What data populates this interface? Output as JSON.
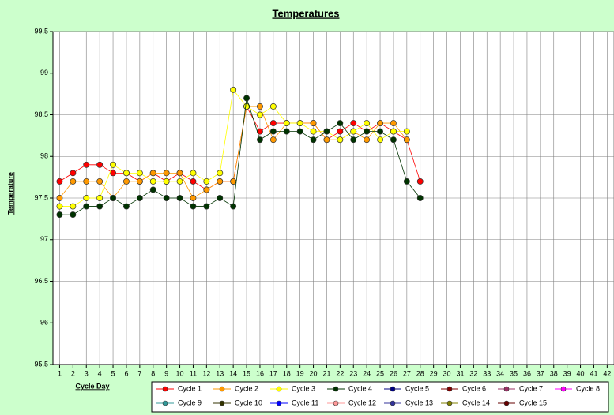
{
  "chart_data": {
    "type": "line",
    "title": "Temperatures",
    "x_label": "Cycle Day",
    "y_label": "Temperature",
    "categories": [
      1,
      2,
      3,
      4,
      5,
      6,
      7,
      8,
      9,
      10,
      11,
      12,
      13,
      14,
      15,
      16,
      17,
      18,
      19,
      20,
      21,
      22,
      23,
      24,
      25,
      26,
      27,
      28,
      29,
      30,
      31,
      32,
      33,
      34,
      35,
      36,
      37,
      38,
      39,
      40,
      41,
      42
    ],
    "ylim": [
      95.5,
      99.5
    ],
    "yticks": [
      95.5,
      96,
      96.5,
      97,
      97.5,
      98,
      98.5,
      99,
      99.5
    ],
    "grid": true,
    "legend": "bottom",
    "series": [
      {
        "name": "Cycle 1",
        "color": "#ff0000",
        "values": [
          97.7,
          97.8,
          97.9,
          97.9,
          97.8,
          97.8,
          97.7,
          97.8,
          97.7,
          97.8,
          97.7,
          97.6,
          97.7,
          97.7,
          98.6,
          98.3,
          98.4,
          98.4,
          98.4,
          98.4,
          98.2,
          98.3,
          98.4,
          98.3,
          98.4,
          98.3,
          98.2,
          97.7,
          null,
          null,
          null,
          null,
          null,
          null,
          null,
          null,
          null,
          null,
          null,
          null,
          null,
          null
        ]
      },
      {
        "name": "Cycle 2",
        "color": "#ff9900",
        "values": [
          97.5,
          97.7,
          97.7,
          97.7,
          97.5,
          97.7,
          97.7,
          97.8,
          97.8,
          97.8,
          97.5,
          97.6,
          97.7,
          97.7,
          98.6,
          98.6,
          98.2,
          98.4,
          98.4,
          98.4,
          98.2,
          98.2,
          98.3,
          98.2,
          98.4,
          98.4,
          98.2,
          null,
          null,
          null,
          null,
          null,
          null,
          null,
          null,
          null,
          null,
          null,
          null,
          null,
          null,
          null
        ]
      },
      {
        "name": "Cycle 3",
        "color": "#ffff00",
        "values": [
          97.4,
          97.4,
          97.5,
          97.5,
          97.9,
          97.8,
          97.8,
          97.7,
          97.7,
          97.7,
          97.8,
          97.7,
          97.8,
          98.8,
          98.6,
          98.5,
          98.6,
          98.4,
          98.4,
          98.3,
          98.3,
          98.2,
          98.3,
          98.4,
          98.2,
          98.3,
          98.3,
          null,
          null,
          null,
          null,
          null,
          null,
          null,
          null,
          null,
          null,
          null,
          null,
          null,
          null,
          null
        ]
      },
      {
        "name": "Cycle 4",
        "color": "#003300",
        "values": [
          97.3,
          97.3,
          97.4,
          97.4,
          97.5,
          97.4,
          97.5,
          97.6,
          97.5,
          97.5,
          97.4,
          97.4,
          97.5,
          97.4,
          98.7,
          98.2,
          98.3,
          98.3,
          98.3,
          98.2,
          98.3,
          98.4,
          98.2,
          98.3,
          98.3,
          98.2,
          97.7,
          97.5,
          null,
          null,
          null,
          null,
          null,
          null,
          null,
          null,
          null,
          null,
          null,
          null,
          null,
          null
        ]
      },
      {
        "name": "Cycle 5",
        "color": "#000080",
        "values": [
          null,
          null,
          null,
          null,
          null,
          null,
          null,
          null,
          null,
          null,
          null,
          null,
          null,
          null,
          null,
          null,
          null,
          null,
          null,
          null,
          null,
          null,
          null,
          null,
          null,
          null,
          null,
          null,
          null,
          null,
          null,
          null,
          null,
          null,
          null,
          null,
          null,
          null,
          null,
          null,
          null,
          null
        ]
      },
      {
        "name": "Cycle 6",
        "color": "#800000",
        "values": [
          null,
          null,
          null,
          null,
          null,
          null,
          null,
          null,
          null,
          null,
          null,
          null,
          null,
          null,
          null,
          null,
          null,
          null,
          null,
          null,
          null,
          null,
          null,
          null,
          null,
          null,
          null,
          null,
          null,
          null,
          null,
          null,
          null,
          null,
          null,
          null,
          null,
          null,
          null,
          null,
          null,
          null
        ]
      },
      {
        "name": "Cycle 7",
        "color": "#993366",
        "values": [
          null,
          null,
          null,
          null,
          null,
          null,
          null,
          null,
          null,
          null,
          null,
          null,
          null,
          null,
          null,
          null,
          null,
          null,
          null,
          null,
          null,
          null,
          null,
          null,
          null,
          null,
          null,
          null,
          null,
          null,
          null,
          null,
          null,
          null,
          null,
          null,
          null,
          null,
          null,
          null,
          null,
          null
        ]
      },
      {
        "name": "Cycle 8",
        "color": "#ff00ff",
        "values": [
          null,
          null,
          null,
          null,
          null,
          null,
          null,
          null,
          null,
          null,
          null,
          null,
          null,
          null,
          null,
          null,
          null,
          null,
          null,
          null,
          null,
          null,
          null,
          null,
          null,
          null,
          null,
          null,
          null,
          null,
          null,
          null,
          null,
          null,
          null,
          null,
          null,
          null,
          null,
          null,
          null,
          null
        ]
      },
      {
        "name": "Cycle 9",
        "color": "#339999",
        "values": [
          null,
          null,
          null,
          null,
          null,
          null,
          null,
          null,
          null,
          null,
          null,
          null,
          null,
          null,
          null,
          null,
          null,
          null,
          null,
          null,
          null,
          null,
          null,
          null,
          null,
          null,
          null,
          null,
          null,
          null,
          null,
          null,
          null,
          null,
          null,
          null,
          null,
          null,
          null,
          null,
          null,
          null
        ]
      },
      {
        "name": "Cycle 10",
        "color": "#333300",
        "values": [
          null,
          null,
          null,
          null,
          null,
          null,
          null,
          null,
          null,
          null,
          null,
          null,
          null,
          null,
          null,
          null,
          null,
          null,
          null,
          null,
          null,
          null,
          null,
          null,
          null,
          null,
          null,
          null,
          null,
          null,
          null,
          null,
          null,
          null,
          null,
          null,
          null,
          null,
          null,
          null,
          null,
          null
        ]
      },
      {
        "name": "Cycle 11",
        "color": "#0000ff",
        "values": [
          null,
          null,
          null,
          null,
          null,
          null,
          null,
          null,
          null,
          null,
          null,
          null,
          null,
          null,
          null,
          null,
          null,
          null,
          null,
          null,
          null,
          null,
          null,
          null,
          null,
          null,
          null,
          null,
          null,
          null,
          null,
          null,
          null,
          null,
          null,
          null,
          null,
          null,
          null,
          null,
          null,
          null
        ]
      },
      {
        "name": "Cycle 12",
        "color": "#ff9999",
        "values": [
          null,
          null,
          null,
          null,
          null,
          null,
          null,
          null,
          null,
          null,
          null,
          null,
          null,
          null,
          null,
          null,
          null,
          null,
          null,
          null,
          null,
          null,
          null,
          null,
          null,
          null,
          null,
          null,
          null,
          null,
          null,
          null,
          null,
          null,
          null,
          null,
          null,
          null,
          null,
          null,
          null,
          null
        ]
      },
      {
        "name": "Cycle 13",
        "color": "#333399",
        "values": [
          null,
          null,
          null,
          null,
          null,
          null,
          null,
          null,
          null,
          null,
          null,
          null,
          null,
          null,
          null,
          null,
          null,
          null,
          null,
          null,
          null,
          null,
          null,
          null,
          null,
          null,
          null,
          null,
          null,
          null,
          null,
          null,
          null,
          null,
          null,
          null,
          null,
          null,
          null,
          null,
          null,
          null
        ]
      },
      {
        "name": "Cycle 14",
        "color": "#808000",
        "values": [
          null,
          null,
          null,
          null,
          null,
          null,
          null,
          null,
          null,
          null,
          null,
          null,
          null,
          null,
          null,
          null,
          null,
          null,
          null,
          null,
          null,
          null,
          null,
          null,
          null,
          null,
          null,
          null,
          null,
          null,
          null,
          null,
          null,
          null,
          null,
          null,
          null,
          null,
          null,
          null,
          null,
          null
        ]
      },
      {
        "name": "Cycle 15",
        "color": "#660000",
        "values": [
          null,
          null,
          null,
          null,
          null,
          null,
          null,
          null,
          null,
          null,
          null,
          null,
          null,
          null,
          null,
          null,
          null,
          null,
          null,
          null,
          null,
          null,
          null,
          null,
          null,
          null,
          null,
          null,
          null,
          null,
          null,
          null,
          null,
          null,
          null,
          null,
          null,
          null,
          null,
          null,
          null,
          null
        ]
      }
    ]
  }
}
